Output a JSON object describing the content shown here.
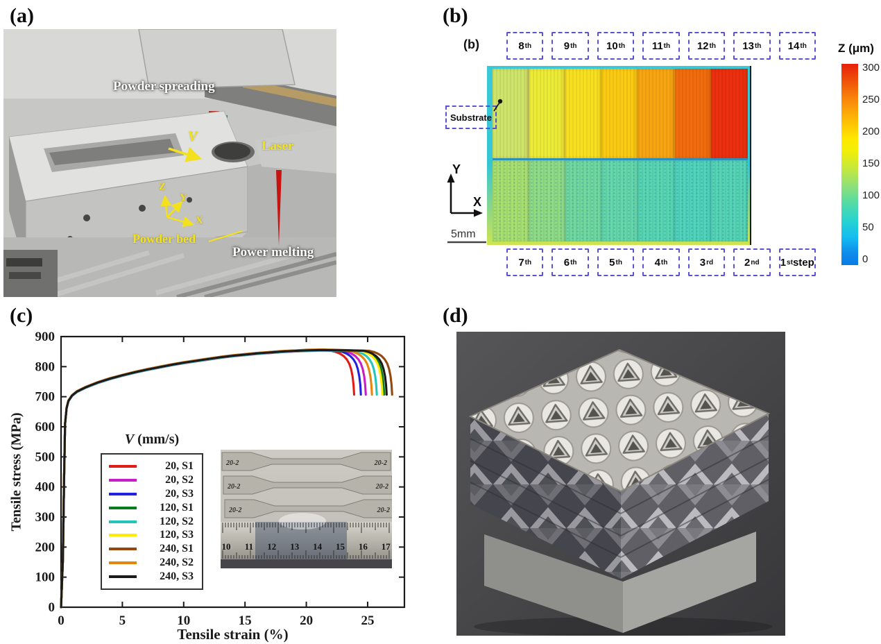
{
  "panel_a": {
    "tag": "(a)",
    "labels": {
      "powder_spreading": "Powder spreading",
      "velocity": "V",
      "laser": "Laser",
      "axis_z": "Z",
      "axis_y": "Y",
      "axis_x": "X",
      "powder_bed": "Powder bed",
      "power_melting": "Power melting"
    },
    "colors": {
      "annotation_yellow": "#f2e11c",
      "laser_beam_red": "#c81410"
    }
  },
  "panel_b": {
    "tag": "(b)",
    "inner_tag": "(b)",
    "top_steps": [
      "8th",
      "9th",
      "10th",
      "11th",
      "12th",
      "13th",
      "14th"
    ],
    "bottom_steps": [
      "7th",
      "6th",
      "5th",
      "4th",
      "3rd",
      "2nd",
      "1st step"
    ],
    "substrate_label": "Substrate",
    "axis_y": "Y",
    "axis_x": "X",
    "scale_bar": "5mm",
    "colorbar": {
      "title": "Z (μm)",
      "ticks": [
        "300",
        "250",
        "200",
        "150",
        "100",
        "50",
        "0"
      ],
      "range_um": [
        0,
        300
      ]
    },
    "heatmap": {
      "top_row_colors": [
        "#cfe46a",
        "#eceb36",
        "#f8e020",
        "#fbca12",
        "#f8a512",
        "#f26c0d",
        "#ec2f0e"
      ],
      "bottom_row_colors": [
        "#a8e070",
        "#8edc85",
        "#6fd9a0",
        "#64d8aa",
        "#58d6b2",
        "#50d4ba",
        "#55d5b5"
      ],
      "top_row_approx_z_um": [
        115,
        130,
        145,
        160,
        185,
        225,
        280
      ],
      "bottom_row_approx_z_um": [
        95,
        85,
        75,
        70,
        65,
        60,
        62
      ]
    }
  },
  "chart_data": {
    "type": "line",
    "xlabel": "Tensile strain (%)",
    "ylabel": "Tensile stress (MPa)",
    "legend_title_v": "V",
    "legend_title_rest": " (mm/s)",
    "xlim": [
      0,
      28
    ],
    "ylim": [
      0,
      900
    ],
    "xticks": [
      0,
      5,
      10,
      15,
      20,
      25
    ],
    "yticks": [
      0,
      100,
      200,
      300,
      400,
      500,
      600,
      700,
      800,
      900
    ],
    "backbone": [
      [
        0,
        0
      ],
      [
        0.15,
        160
      ],
      [
        0.25,
        430
      ],
      [
        0.33,
        610
      ],
      [
        0.45,
        662
      ],
      [
        0.6,
        686
      ],
      [
        0.9,
        704
      ],
      [
        1.3,
        717
      ],
      [
        2,
        731
      ],
      [
        3,
        747
      ],
      [
        4,
        760
      ],
      [
        5,
        771
      ],
      [
        6,
        781
      ],
      [
        7,
        790
      ],
      [
        8,
        798
      ],
      [
        9,
        806
      ],
      [
        10,
        813
      ],
      [
        11,
        819
      ],
      [
        12,
        825
      ],
      [
        13,
        831
      ],
      [
        14,
        836
      ],
      [
        15,
        840
      ],
      [
        16,
        844
      ],
      [
        17,
        847
      ],
      [
        18,
        850
      ],
      [
        19,
        852
      ],
      [
        20,
        854
      ],
      [
        21,
        855
      ],
      [
        21.5,
        855
      ]
    ],
    "tail_profile": [
      [
        -1.9,
        853
      ],
      [
        -1.5,
        849
      ],
      [
        -1.15,
        843
      ],
      [
        -0.85,
        835
      ],
      [
        -0.6,
        824
      ],
      [
        -0.4,
        810
      ],
      [
        -0.25,
        792
      ],
      [
        -0.13,
        768
      ],
      [
        -0.05,
        740
      ],
      [
        0,
        707
      ]
    ],
    "series": [
      {
        "name": "20, S1",
        "color": "#e31b17",
        "failure_strain": 23.9
      },
      {
        "name": "20, S2",
        "color": "#c81dc8",
        "failure_strain": 24.85
      },
      {
        "name": "20, S3",
        "color": "#2321de",
        "failure_strain": 24.45
      },
      {
        "name": "120, S1",
        "color": "#0a7b20",
        "failure_strain": 26.35
      },
      {
        "name": "120, S2",
        "color": "#25c6ba",
        "failure_strain": 25.75
      },
      {
        "name": "120, S3",
        "color": "#ffec00",
        "failure_strain": 26.2
      },
      {
        "name": "240, S1",
        "color": "#94480e",
        "failure_strain": 27.0
      },
      {
        "name": "240, S2",
        "color": "#e6860e",
        "failure_strain": 25.35
      },
      {
        "name": "240, S3",
        "color": "#1b1b1b",
        "failure_strain": 26.55
      }
    ]
  },
  "panel_c": {
    "tag": "(c)",
    "inset": {
      "specimen_label": "20-2",
      "ruler_numbers": [
        "10",
        "11",
        "12",
        "13",
        "14",
        "15",
        "16",
        "17"
      ]
    }
  },
  "panel_d": {
    "tag": "(d)"
  }
}
